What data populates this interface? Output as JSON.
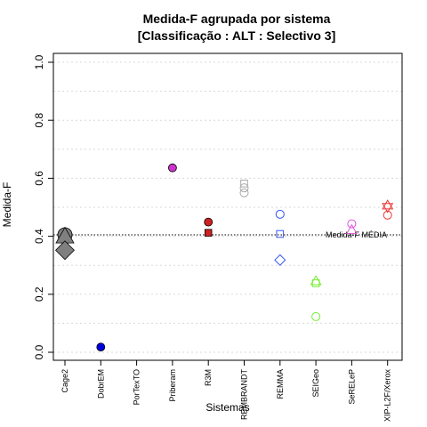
{
  "chart_data": {
    "type": "scatter",
    "title": "Medida-F agrupada por sistema",
    "subtitle": "[Classificação : ALT : Selectivo 3]",
    "xlabel": "Sistemas",
    "ylabel": "Medida-F",
    "ylim": [
      0,
      1
    ],
    "yticks": [
      "0.0",
      "0.2",
      "0.4",
      "0.6",
      "0.8",
      "1.0"
    ],
    "categories": [
      "Cage2",
      "DobrEM",
      "PorTexTO",
      "Priberam",
      "R3M",
      "REMBRANDT",
      "REMMA",
      "SEIGeo",
      "SeRELeP",
      "XIP-L2F/Xerox"
    ],
    "grid": true,
    "reference_line": {
      "value": 0.405,
      "label": "Medida-F MÉDIA"
    },
    "points": [
      {
        "category": "Cage2",
        "y": 0.405,
        "shape": "circle",
        "color": "#808080",
        "filled": true,
        "size": "large"
      },
      {
        "category": "Cage2",
        "y": 0.4,
        "shape": "triangle",
        "color": "#808080",
        "filled": true,
        "size": "large"
      },
      {
        "category": "Cage2",
        "y": 0.352,
        "shape": "diamond",
        "color": "#808080",
        "filled": true,
        "size": "large"
      },
      {
        "category": "DobrEM",
        "y": 0.018,
        "shape": "circle",
        "color": "#0000dd",
        "filled": true,
        "size": "small"
      },
      {
        "category": "Priberam",
        "y": 0.636,
        "shape": "circle",
        "color": "#cc33cc",
        "filled": true,
        "size": "small"
      },
      {
        "category": "R3M",
        "y": 0.449,
        "shape": "circle",
        "color": "#cc2222",
        "filled": true,
        "size": "small"
      },
      {
        "category": "R3M",
        "y": 0.412,
        "shape": "square",
        "color": "#cc2222",
        "filled": true,
        "size": "small"
      },
      {
        "category": "REMBRANDT",
        "y": 0.582,
        "shape": "square",
        "color": "#aaaaaa",
        "filled": false,
        "size": "small"
      },
      {
        "category": "REMBRANDT",
        "y": 0.567,
        "shape": "circle",
        "color": "#aaaaaa",
        "filled": false,
        "size": "small"
      },
      {
        "category": "REMBRANDT",
        "y": 0.55,
        "shape": "circle",
        "color": "#aaaaaa",
        "filled": false,
        "size": "small"
      },
      {
        "category": "REMMA",
        "y": 0.476,
        "shape": "circle",
        "color": "#3355ee",
        "filled": false,
        "size": "small"
      },
      {
        "category": "REMMA",
        "y": 0.408,
        "shape": "square",
        "color": "#3355ee",
        "filled": false,
        "size": "small"
      },
      {
        "category": "REMMA",
        "y": 0.318,
        "shape": "diamond",
        "color": "#3355ee",
        "filled": false,
        "size": "small"
      },
      {
        "category": "SEIGeo",
        "y": 0.246,
        "shape": "triangle",
        "color": "#77ee33",
        "filled": false,
        "size": "small"
      },
      {
        "category": "SEIGeo",
        "y": 0.238,
        "shape": "square",
        "color": "#77ee33",
        "filled": false,
        "size": "small"
      },
      {
        "category": "SEIGeo",
        "y": 0.123,
        "shape": "circle",
        "color": "#77ee33",
        "filled": false,
        "size": "small"
      },
      {
        "category": "SeRELeP",
        "y": 0.443,
        "shape": "circle",
        "color": "#dd55dd",
        "filled": false,
        "size": "small"
      },
      {
        "category": "SeRELeP",
        "y": 0.422,
        "shape": "triangle",
        "color": "#dd55dd",
        "filled": false,
        "size": "small"
      },
      {
        "category": "XIP-L2F/Xerox",
        "y": 0.507,
        "shape": "triangle",
        "color": "#ee3333",
        "filled": false,
        "size": "small"
      },
      {
        "category": "XIP-L2F/Xerox",
        "y": 0.5,
        "shape": "triangle-down",
        "color": "#ee3333",
        "filled": false,
        "size": "small"
      },
      {
        "category": "XIP-L2F/Xerox",
        "y": 0.473,
        "shape": "circle",
        "color": "#ee3333",
        "filled": false,
        "size": "small"
      }
    ]
  }
}
